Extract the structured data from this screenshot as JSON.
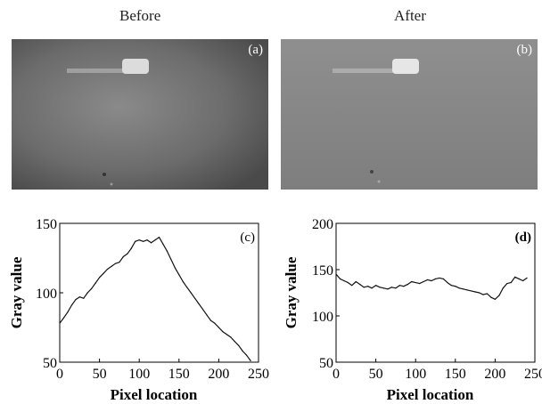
{
  "titles": {
    "before": "Before",
    "after": "After"
  },
  "images": [
    {
      "label": "(a)",
      "tone": "#6c6c6c",
      "hot_spot_color": "#dcdcdc"
    },
    {
      "label": "(b)",
      "tone": "#888888",
      "hot_spot_color": "#e6e6e6"
    }
  ],
  "chart_data": [
    {
      "type": "line",
      "panel_label": "(c)",
      "xlabel": "Pixel location",
      "ylabel": "Gray value",
      "xlim": [
        0,
        250
      ],
      "ylim": [
        50,
        150
      ],
      "xticks": [
        0,
        50,
        100,
        150,
        200,
        250
      ],
      "yticks": [
        50,
        100,
        150
      ],
      "x": [
        0,
        5,
        10,
        15,
        20,
        25,
        30,
        35,
        40,
        45,
        50,
        55,
        60,
        65,
        70,
        75,
        80,
        85,
        90,
        95,
        100,
        105,
        110,
        115,
        120,
        125,
        130,
        135,
        140,
        145,
        150,
        155,
        160,
        165,
        170,
        175,
        180,
        185,
        190,
        195,
        200,
        205,
        210,
        215,
        220,
        225,
        230,
        235,
        240
      ],
      "values": [
        78,
        82,
        86,
        91,
        95,
        97,
        96,
        100,
        103,
        107,
        111,
        114,
        117,
        119,
        121,
        122,
        126,
        128,
        132,
        137,
        138,
        137,
        138,
        136,
        138,
        140,
        135,
        130,
        124,
        118,
        113,
        108,
        104,
        100,
        96,
        92,
        88,
        84,
        80,
        78,
        75,
        72,
        70,
        68,
        65,
        62,
        58,
        55,
        51
      ],
      "grid": false
    },
    {
      "type": "line",
      "panel_label": "(d)",
      "xlabel": "Pixel location",
      "ylabel": "Gray value",
      "xlim": [
        0,
        250
      ],
      "ylim": [
        50,
        200
      ],
      "xticks": [
        0,
        50,
        100,
        150,
        200,
        250
      ],
      "yticks": [
        50,
        100,
        150,
        200
      ],
      "x": [
        0,
        5,
        10,
        15,
        20,
        25,
        30,
        35,
        40,
        45,
        50,
        55,
        60,
        65,
        70,
        75,
        80,
        85,
        90,
        95,
        100,
        105,
        110,
        115,
        120,
        125,
        130,
        135,
        140,
        145,
        150,
        155,
        160,
        165,
        170,
        175,
        180,
        185,
        190,
        195,
        200,
        205,
        210,
        215,
        220,
        225,
        230,
        235,
        240
      ],
      "values": [
        145,
        140,
        138,
        136,
        133,
        137,
        134,
        131,
        132,
        130,
        133,
        131,
        130,
        129,
        131,
        130,
        133,
        132,
        134,
        137,
        136,
        135,
        137,
        139,
        138,
        140,
        141,
        140,
        136,
        133,
        132,
        130,
        129,
        128,
        127,
        126,
        125,
        123,
        124,
        120,
        118,
        122,
        130,
        135,
        136,
        142,
        140,
        138,
        141
      ],
      "grid": false
    }
  ]
}
